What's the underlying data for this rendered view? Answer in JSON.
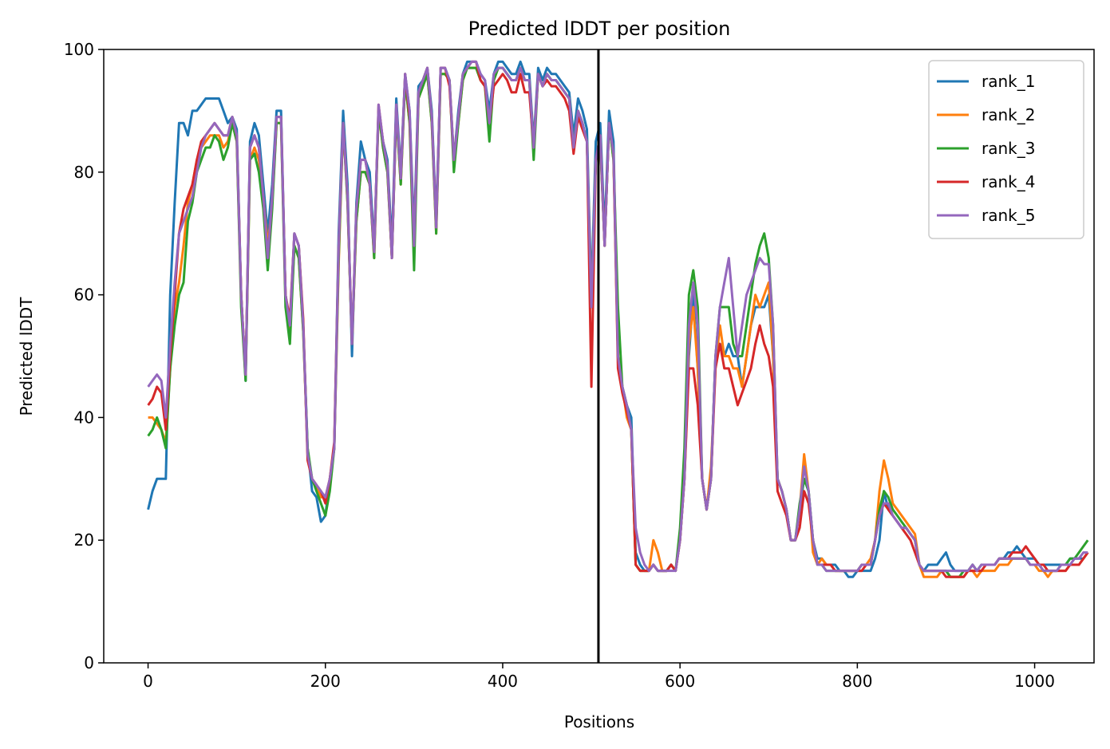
{
  "chart_data": {
    "type": "line",
    "title": "Predicted lDDT per position",
    "xlabel": "Positions",
    "ylabel": "Predicted lDDT",
    "xlim": [
      -50,
      1067
    ],
    "ylim": [
      0,
      100
    ],
    "xticks": [
      0,
      200,
      400,
      600,
      800,
      1000
    ],
    "yticks": [
      0,
      20,
      40,
      60,
      80,
      100
    ],
    "grid": false,
    "legend_position": "top-right",
    "vline": {
      "x": 508,
      "color": "#000000"
    },
    "x_start": 0,
    "x_step": 5,
    "series": [
      {
        "name": "rank_1",
        "color": "#1f77b4",
        "values": [
          25,
          28,
          30,
          30,
          30,
          60,
          75,
          88,
          88,
          86,
          90,
          90,
          91,
          92,
          92,
          92,
          92,
          90,
          88,
          89,
          87,
          60,
          46,
          85,
          88,
          86,
          78,
          70,
          78,
          90,
          90,
          60,
          55,
          70,
          68,
          55,
          35,
          28,
          27,
          23,
          24,
          30,
          35,
          70,
          90,
          78,
          50,
          75,
          85,
          82,
          80,
          68,
          90,
          85,
          82,
          68,
          92,
          80,
          96,
          90,
          70,
          94,
          95,
          97,
          90,
          72,
          97,
          97,
          95,
          82,
          90,
          96,
          98,
          98,
          98,
          96,
          95,
          90,
          96,
          98,
          98,
          97,
          96,
          96,
          98,
          96,
          96,
          85,
          97,
          95,
          97,
          96,
          96,
          95,
          94,
          93,
          86,
          92,
          90,
          87,
          60,
          85,
          88,
          70,
          90,
          85,
          50,
          45,
          42,
          40,
          18,
          16,
          15,
          15,
          16,
          15,
          15,
          15,
          16,
          15,
          20,
          30,
          50,
          60,
          48,
          30,
          25,
          30,
          50,
          52,
          50,
          52,
          50,
          50,
          45,
          50,
          55,
          58,
          58,
          58,
          60,
          50,
          30,
          28,
          25,
          20,
          20,
          25,
          30,
          28,
          20,
          17,
          17,
          16,
          16,
          16,
          15,
          15,
          14,
          14,
          15,
          15,
          15,
          15,
          17,
          20,
          28,
          25,
          24,
          23,
          22,
          22,
          21,
          20,
          16,
          15,
          16,
          16,
          16,
          17,
          18,
          16,
          15,
          15,
          15,
          15,
          16,
          15,
          16,
          16,
          16,
          16,
          17,
          17,
          18,
          18,
          19,
          18,
          17,
          17,
          17,
          16,
          16,
          16,
          16,
          16,
          16,
          16,
          17,
          17,
          17,
          17,
          18
        ]
      },
      {
        "name": "rank_2",
        "color": "#ff7f0e",
        "values": [
          40,
          40,
          39,
          38,
          36,
          48,
          58,
          62,
          68,
          75,
          78,
          82,
          84,
          85,
          86,
          86,
          86,
          84,
          85,
          88,
          85,
          60,
          47,
          82,
          84,
          82,
          76,
          68,
          75,
          88,
          88,
          60,
          54,
          68,
          66,
          54,
          34,
          30,
          29,
          27,
          27,
          30,
          35,
          65,
          88,
          75,
          52,
          72,
          80,
          80,
          78,
          66,
          90,
          84,
          80,
          66,
          90,
          78,
          95,
          88,
          68,
          92,
          94,
          96,
          88,
          70,
          96,
          96,
          95,
          82,
          88,
          95,
          97,
          97,
          97,
          95,
          94,
          88,
          95,
          97,
          97,
          96,
          95,
          95,
          97,
          95,
          95,
          84,
          96,
          94,
          96,
          95,
          95,
          94,
          93,
          92,
          84,
          90,
          88,
          85,
          58,
          82,
          85,
          68,
          88,
          82,
          50,
          45,
          40,
          38,
          16,
          15,
          15,
          15,
          20,
          18,
          15,
          15,
          16,
          15,
          20,
          30,
          52,
          58,
          48,
          30,
          25,
          32,
          48,
          55,
          50,
          50,
          48,
          48,
          45,
          50,
          55,
          60,
          58,
          60,
          62,
          50,
          30,
          28,
          25,
          20,
          20,
          25,
          34,
          28,
          18,
          16,
          17,
          16,
          16,
          15,
          15,
          15,
          15,
          15,
          15,
          16,
          16,
          17,
          20,
          28,
          33,
          30,
          26,
          25,
          24,
          23,
          22,
          21,
          16,
          14,
          14,
          14,
          14,
          15,
          15,
          14,
          14,
          14,
          14,
          15,
          15,
          14,
          15,
          15,
          15,
          15,
          16,
          16,
          16,
          17,
          17,
          17,
          17,
          16,
          16,
          15,
          15,
          14,
          15,
          15,
          15,
          15,
          16,
          16,
          16,
          17,
          18
        ]
      },
      {
        "name": "rank_3",
        "color": "#2ca02c",
        "values": [
          37,
          38,
          40,
          38,
          35,
          48,
          55,
          60,
          62,
          72,
          75,
          80,
          82,
          84,
          84,
          86,
          85,
          82,
          84,
          88,
          85,
          58,
          46,
          82,
          83,
          80,
          74,
          64,
          74,
          88,
          88,
          58,
          52,
          68,
          66,
          54,
          35,
          30,
          28,
          26,
          24,
          28,
          35,
          66,
          88,
          75,
          52,
          72,
          80,
          80,
          78,
          66,
          90,
          84,
          80,
          66,
          90,
          78,
          95,
          88,
          64,
          92,
          94,
          96,
          88,
          70,
          96,
          96,
          95,
          80,
          88,
          95,
          97,
          97,
          97,
          95,
          94,
          85,
          95,
          97,
          97,
          96,
          95,
          95,
          97,
          95,
          95,
          82,
          96,
          94,
          96,
          95,
          95,
          94,
          93,
          92,
          84,
          90,
          88,
          85,
          58,
          82,
          85,
          68,
          88,
          82,
          58,
          45,
          42,
          38,
          16,
          15,
          15,
          15,
          16,
          15,
          15,
          15,
          16,
          15,
          22,
          35,
          60,
          64,
          58,
          30,
          25,
          30,
          50,
          58,
          58,
          58,
          52,
          50,
          50,
          55,
          60,
          65,
          68,
          70,
          66,
          55,
          30,
          28,
          25,
          20,
          20,
          26,
          30,
          28,
          20,
          16,
          16,
          15,
          15,
          15,
          15,
          15,
          15,
          15,
          15,
          16,
          16,
          16,
          20,
          25,
          28,
          27,
          25,
          24,
          23,
          22,
          21,
          20,
          16,
          15,
          15,
          15,
          15,
          15,
          15,
          14,
          14,
          14,
          15,
          15,
          16,
          15,
          16,
          16,
          16,
          16,
          17,
          17,
          17,
          17,
          17,
          17,
          17,
          16,
          16,
          16,
          15,
          15,
          15,
          15,
          16,
          16,
          17,
          17,
          18,
          19,
          20
        ]
      },
      {
        "name": "rank_4",
        "color": "#d62728",
        "values": [
          42,
          43,
          45,
          44,
          38,
          50,
          60,
          70,
          74,
          76,
          78,
          82,
          85,
          86,
          87,
          88,
          87,
          86,
          86,
          89,
          86,
          60,
          47,
          84,
          86,
          84,
          76,
          66,
          76,
          89,
          89,
          60,
          56,
          70,
          68,
          56,
          33,
          30,
          29,
          28,
          26,
          30,
          36,
          68,
          88,
          76,
          52,
          74,
          82,
          82,
          78,
          67,
          91,
          85,
          81,
          66,
          91,
          79,
          96,
          89,
          68,
          93,
          95,
          97,
          89,
          71,
          97,
          97,
          94,
          82,
          89,
          96,
          97,
          98,
          98,
          95,
          94,
          88,
          94,
          95,
          96,
          95,
          93,
          93,
          96,
          93,
          93,
          84,
          96,
          94,
          95,
          94,
          94,
          93,
          92,
          90,
          83,
          89,
          87,
          85,
          45,
          82,
          86,
          68,
          88,
          83,
          48,
          44,
          41,
          38,
          16,
          15,
          15,
          15,
          16,
          15,
          15,
          15,
          16,
          15,
          20,
          30,
          48,
          48,
          42,
          30,
          25,
          30,
          48,
          52,
          48,
          48,
          45,
          42,
          44,
          46,
          48,
          52,
          55,
          52,
          50,
          45,
          28,
          26,
          24,
          20,
          20,
          22,
          28,
          26,
          20,
          16,
          16,
          16,
          16,
          15,
          15,
          15,
          15,
          15,
          15,
          15,
          16,
          16,
          20,
          24,
          26,
          25,
          24,
          23,
          22,
          21,
          20,
          18,
          16,
          15,
          15,
          15,
          15,
          15,
          14,
          14,
          14,
          14,
          14,
          15,
          15,
          15,
          15,
          16,
          16,
          16,
          17,
          17,
          17,
          18,
          18,
          18,
          19,
          18,
          17,
          16,
          16,
          15,
          15,
          15,
          15,
          15,
          16,
          16,
          16,
          17,
          18
        ]
      },
      {
        "name": "rank_5",
        "color": "#9467bd",
        "values": [
          45,
          46,
          47,
          46,
          40,
          52,
          62,
          70,
          72,
          74,
          76,
          80,
          84,
          86,
          87,
          88,
          87,
          86,
          86,
          89,
          86,
          60,
          47,
          84,
          86,
          84,
          76,
          66,
          76,
          89,
          89,
          60,
          55,
          70,
          68,
          55,
          34,
          30,
          29,
          28,
          27,
          30,
          35,
          68,
          88,
          76,
          52,
          74,
          82,
          82,
          78,
          67,
          91,
          85,
          81,
          66,
          91,
          79,
          96,
          90,
          68,
          93,
          95,
          97,
          89,
          71,
          97,
          97,
          95,
          82,
          89,
          96,
          97,
          98,
          98,
          96,
          95,
          88,
          96,
          97,
          97,
          96,
          95,
          95,
          97,
          95,
          95,
          84,
          96,
          94,
          96,
          95,
          95,
          94,
          93,
          92,
          84,
          90,
          88,
          85,
          58,
          82,
          86,
          68,
          88,
          83,
          50,
          45,
          42,
          38,
          22,
          18,
          16,
          15,
          16,
          15,
          15,
          15,
          15,
          15,
          20,
          30,
          55,
          62,
          55,
          30,
          25,
          30,
          50,
          58,
          62,
          66,
          58,
          50,
          55,
          60,
          62,
          64,
          66,
          65,
          65,
          55,
          30,
          28,
          25,
          20,
          20,
          25,
          32,
          28,
          20,
          16,
          16,
          15,
          15,
          15,
          15,
          15,
          15,
          15,
          15,
          16,
          16,
          16,
          20,
          24,
          26,
          26,
          24,
          23,
          22,
          22,
          21,
          20,
          16,
          15,
          15,
          15,
          15,
          15,
          15,
          15,
          15,
          15,
          15,
          15,
          16,
          15,
          16,
          16,
          16,
          16,
          17,
          17,
          17,
          17,
          17,
          17,
          17,
          16,
          16,
          16,
          15,
          15,
          15,
          15,
          16,
          16,
          16,
          17,
          17,
          18,
          18
        ]
      }
    ]
  }
}
